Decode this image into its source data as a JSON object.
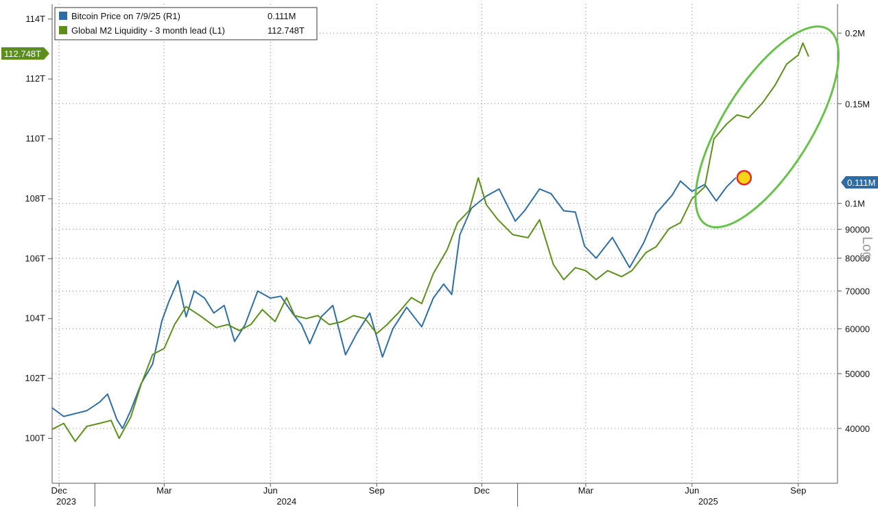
{
  "legend": {
    "btc_label": "Bitcoin Price on 7/9/25 (R1)",
    "btc_value": "0.111M",
    "m2_label": "Global M2 Liquidity - 3 month lead (L1)",
    "m2_value": "112.748T"
  },
  "badges": {
    "m2_last": "112.748T",
    "btc_last": "0.111M"
  },
  "axis_note": "Log",
  "chart_data": {
    "type": "line",
    "x_range": [
      "2023-11-25",
      "2025-10-05"
    ],
    "x_ticks": [
      {
        "label": "Dec",
        "date": "2023-12-01"
      },
      {
        "label": "Mar",
        "date": "2024-03-01"
      },
      {
        "label": "Jun",
        "date": "2024-06-01"
      },
      {
        "label": "Sep",
        "date": "2024-09-01"
      },
      {
        "label": "Dec",
        "date": "2024-12-01"
      },
      {
        "label": "Mar",
        "date": "2025-03-01"
      },
      {
        "label": "Jun",
        "date": "2025-06-01"
      },
      {
        "label": "Sep",
        "date": "2025-09-01"
      }
    ],
    "year_labels": [
      {
        "label": "2023",
        "date": "2023-12-01"
      },
      {
        "label": "2024",
        "date": "2024-06-15"
      },
      {
        "label": "2025",
        "date": "2025-06-15"
      }
    ],
    "y_left": {
      "scale": "linear",
      "range": [
        98.5,
        114.5
      ],
      "ticks": [
        {
          "label": "114T",
          "value": 114
        },
        {
          "label": "112T",
          "value": 112
        },
        {
          "label": "110T",
          "value": 110
        },
        {
          "label": "108T",
          "value": 108
        },
        {
          "label": "106T",
          "value": 106
        },
        {
          "label": "104T",
          "value": 104
        },
        {
          "label": "102T",
          "value": 102
        },
        {
          "label": "100T",
          "value": 100
        }
      ]
    },
    "y_right": {
      "scale": "log",
      "range": [
        32000,
        225000
      ],
      "ticks": [
        {
          "label": "0.2M",
          "value": 200000
        },
        {
          "label": "0.15M",
          "value": 150000
        },
        {
          "label": "0.1M",
          "value": 100000
        },
        {
          "label": "90000",
          "value": 90000
        },
        {
          "label": "80000",
          "value": 80000
        },
        {
          "label": "70000",
          "value": 70000
        },
        {
          "label": "60000",
          "value": 60000
        },
        {
          "label": "50000",
          "value": 50000
        },
        {
          "label": "40000",
          "value": 40000
        }
      ]
    },
    "grid": true,
    "legend_position": "top-left",
    "series": [
      {
        "name": "Bitcoin Price on 7/9/25 (R1)",
        "axis": "right",
        "color": "#2e6da4",
        "points": [
          [
            "2023-11-25",
            43500
          ],
          [
            "2023-12-05",
            42000
          ],
          [
            "2023-12-15",
            42500
          ],
          [
            "2023-12-25",
            43000
          ],
          [
            "2024-01-05",
            44500
          ],
          [
            "2024-01-12",
            46000
          ],
          [
            "2024-01-20",
            41500
          ],
          [
            "2024-01-25",
            40000
          ],
          [
            "2024-02-01",
            43000
          ],
          [
            "2024-02-10",
            48000
          ],
          [
            "2024-02-20",
            52000
          ],
          [
            "2024-02-28",
            62000
          ],
          [
            "2024-03-05",
            67000
          ],
          [
            "2024-03-13",
            73000
          ],
          [
            "2024-03-20",
            63000
          ],
          [
            "2024-03-27",
            70000
          ],
          [
            "2024-04-05",
            68000
          ],
          [
            "2024-04-13",
            64000
          ],
          [
            "2024-04-22",
            66000
          ],
          [
            "2024-05-01",
            57000
          ],
          [
            "2024-05-10",
            61000
          ],
          [
            "2024-05-21",
            70000
          ],
          [
            "2024-06-01",
            68000
          ],
          [
            "2024-06-10",
            68500
          ],
          [
            "2024-06-20",
            64000
          ],
          [
            "2024-06-28",
            61000
          ],
          [
            "2024-07-05",
            56500
          ],
          [
            "2024-07-15",
            63000
          ],
          [
            "2024-07-25",
            66000
          ],
          [
            "2024-08-05",
            54000
          ],
          [
            "2024-08-15",
            59000
          ],
          [
            "2024-08-26",
            64000
          ],
          [
            "2024-09-06",
            53500
          ],
          [
            "2024-09-15",
            60000
          ],
          [
            "2024-09-27",
            65500
          ],
          [
            "2024-10-10",
            60500
          ],
          [
            "2024-10-20",
            68000
          ],
          [
            "2024-10-29",
            72000
          ],
          [
            "2024-11-05",
            69000
          ],
          [
            "2024-11-12",
            88000
          ],
          [
            "2024-11-22",
            98000
          ],
          [
            "2024-12-05",
            103000
          ],
          [
            "2024-12-16",
            106000
          ],
          [
            "2024-12-30",
            93000
          ],
          [
            "2025-01-07",
            97000
          ],
          [
            "2025-01-20",
            106000
          ],
          [
            "2025-01-30",
            104000
          ],
          [
            "2025-02-10",
            97000
          ],
          [
            "2025-02-20",
            96500
          ],
          [
            "2025-02-28",
            84000
          ],
          [
            "2025-03-10",
            80000
          ],
          [
            "2025-03-24",
            87000
          ],
          [
            "2025-04-08",
            77000
          ],
          [
            "2025-04-20",
            85000
          ],
          [
            "2025-05-01",
            96000
          ],
          [
            "2025-05-15",
            103500
          ],
          [
            "2025-05-22",
            109500
          ],
          [
            "2025-06-01",
            105000
          ],
          [
            "2025-06-12",
            108000
          ],
          [
            "2025-06-22",
            101000
          ],
          [
            "2025-07-01",
            107000
          ],
          [
            "2025-07-09",
            111000
          ]
        ]
      },
      {
        "name": "Global M2 Liquidity - 3 month lead (L1)",
        "axis": "left",
        "color": "#5c8f1a",
        "points": [
          [
            "2023-11-25",
            100.3
          ],
          [
            "2023-12-05",
            100.5
          ],
          [
            "2023-12-15",
            99.9
          ],
          [
            "2023-12-25",
            100.4
          ],
          [
            "2024-01-05",
            100.5
          ],
          [
            "2024-01-15",
            100.6
          ],
          [
            "2024-01-22",
            100.0
          ],
          [
            "2024-02-01",
            100.7
          ],
          [
            "2024-02-10",
            101.8
          ],
          [
            "2024-02-20",
            102.8
          ],
          [
            "2024-03-01",
            103.0
          ],
          [
            "2024-03-10",
            103.8
          ],
          [
            "2024-03-20",
            104.4
          ],
          [
            "2024-04-01",
            104.1
          ],
          [
            "2024-04-15",
            103.7
          ],
          [
            "2024-04-25",
            103.8
          ],
          [
            "2024-05-05",
            103.6
          ],
          [
            "2024-05-15",
            103.8
          ],
          [
            "2024-05-25",
            104.3
          ],
          [
            "2024-06-05",
            103.9
          ],
          [
            "2024-06-15",
            104.7
          ],
          [
            "2024-06-22",
            104.1
          ],
          [
            "2024-07-02",
            104.0
          ],
          [
            "2024-07-12",
            104.1
          ],
          [
            "2024-07-22",
            103.8
          ],
          [
            "2024-08-02",
            103.9
          ],
          [
            "2024-08-12",
            104.1
          ],
          [
            "2024-08-22",
            104.0
          ],
          [
            "2024-09-01",
            103.5
          ],
          [
            "2024-09-10",
            103.8
          ],
          [
            "2024-09-20",
            104.2
          ],
          [
            "2024-10-01",
            104.7
          ],
          [
            "2024-10-10",
            104.5
          ],
          [
            "2024-10-20",
            105.5
          ],
          [
            "2024-11-01",
            106.3
          ],
          [
            "2024-11-10",
            107.2
          ],
          [
            "2024-11-20",
            107.6
          ],
          [
            "2024-11-28",
            108.7
          ],
          [
            "2024-12-05",
            107.8
          ],
          [
            "2024-12-15",
            107.3
          ],
          [
            "2024-12-28",
            106.8
          ],
          [
            "2025-01-10",
            106.7
          ],
          [
            "2025-01-20",
            107.3
          ],
          [
            "2025-02-01",
            105.8
          ],
          [
            "2025-02-10",
            105.3
          ],
          [
            "2025-02-20",
            105.7
          ],
          [
            "2025-03-01",
            105.6
          ],
          [
            "2025-03-10",
            105.3
          ],
          [
            "2025-03-20",
            105.6
          ],
          [
            "2025-04-01",
            105.4
          ],
          [
            "2025-04-10",
            105.6
          ],
          [
            "2025-04-22",
            106.2
          ],
          [
            "2025-05-01",
            106.4
          ],
          [
            "2025-05-12",
            107.0
          ],
          [
            "2025-05-22",
            107.2
          ],
          [
            "2025-06-01",
            108.0
          ],
          [
            "2025-06-12",
            108.4
          ],
          [
            "2025-06-20",
            110.0
          ],
          [
            "2025-07-01",
            110.5
          ],
          [
            "2025-07-10",
            110.8
          ],
          [
            "2025-07-20",
            110.7
          ],
          [
            "2025-08-01",
            111.2
          ],
          [
            "2025-08-12",
            111.8
          ],
          [
            "2025-08-22",
            112.5
          ],
          [
            "2025-09-01",
            112.8
          ],
          [
            "2025-09-05",
            113.2
          ],
          [
            "2025-09-10",
            112.748
          ]
        ]
      }
    ],
    "annotations": [
      {
        "type": "ellipse",
        "color": "#66c24a",
        "center": [
          "2025-08-05",
          110.4
        ]
      },
      {
        "type": "circle-marker",
        "color": "#e3272b",
        "fill": "#f7d417",
        "at": [
          "2025-07-09",
          111000
        ]
      }
    ]
  }
}
